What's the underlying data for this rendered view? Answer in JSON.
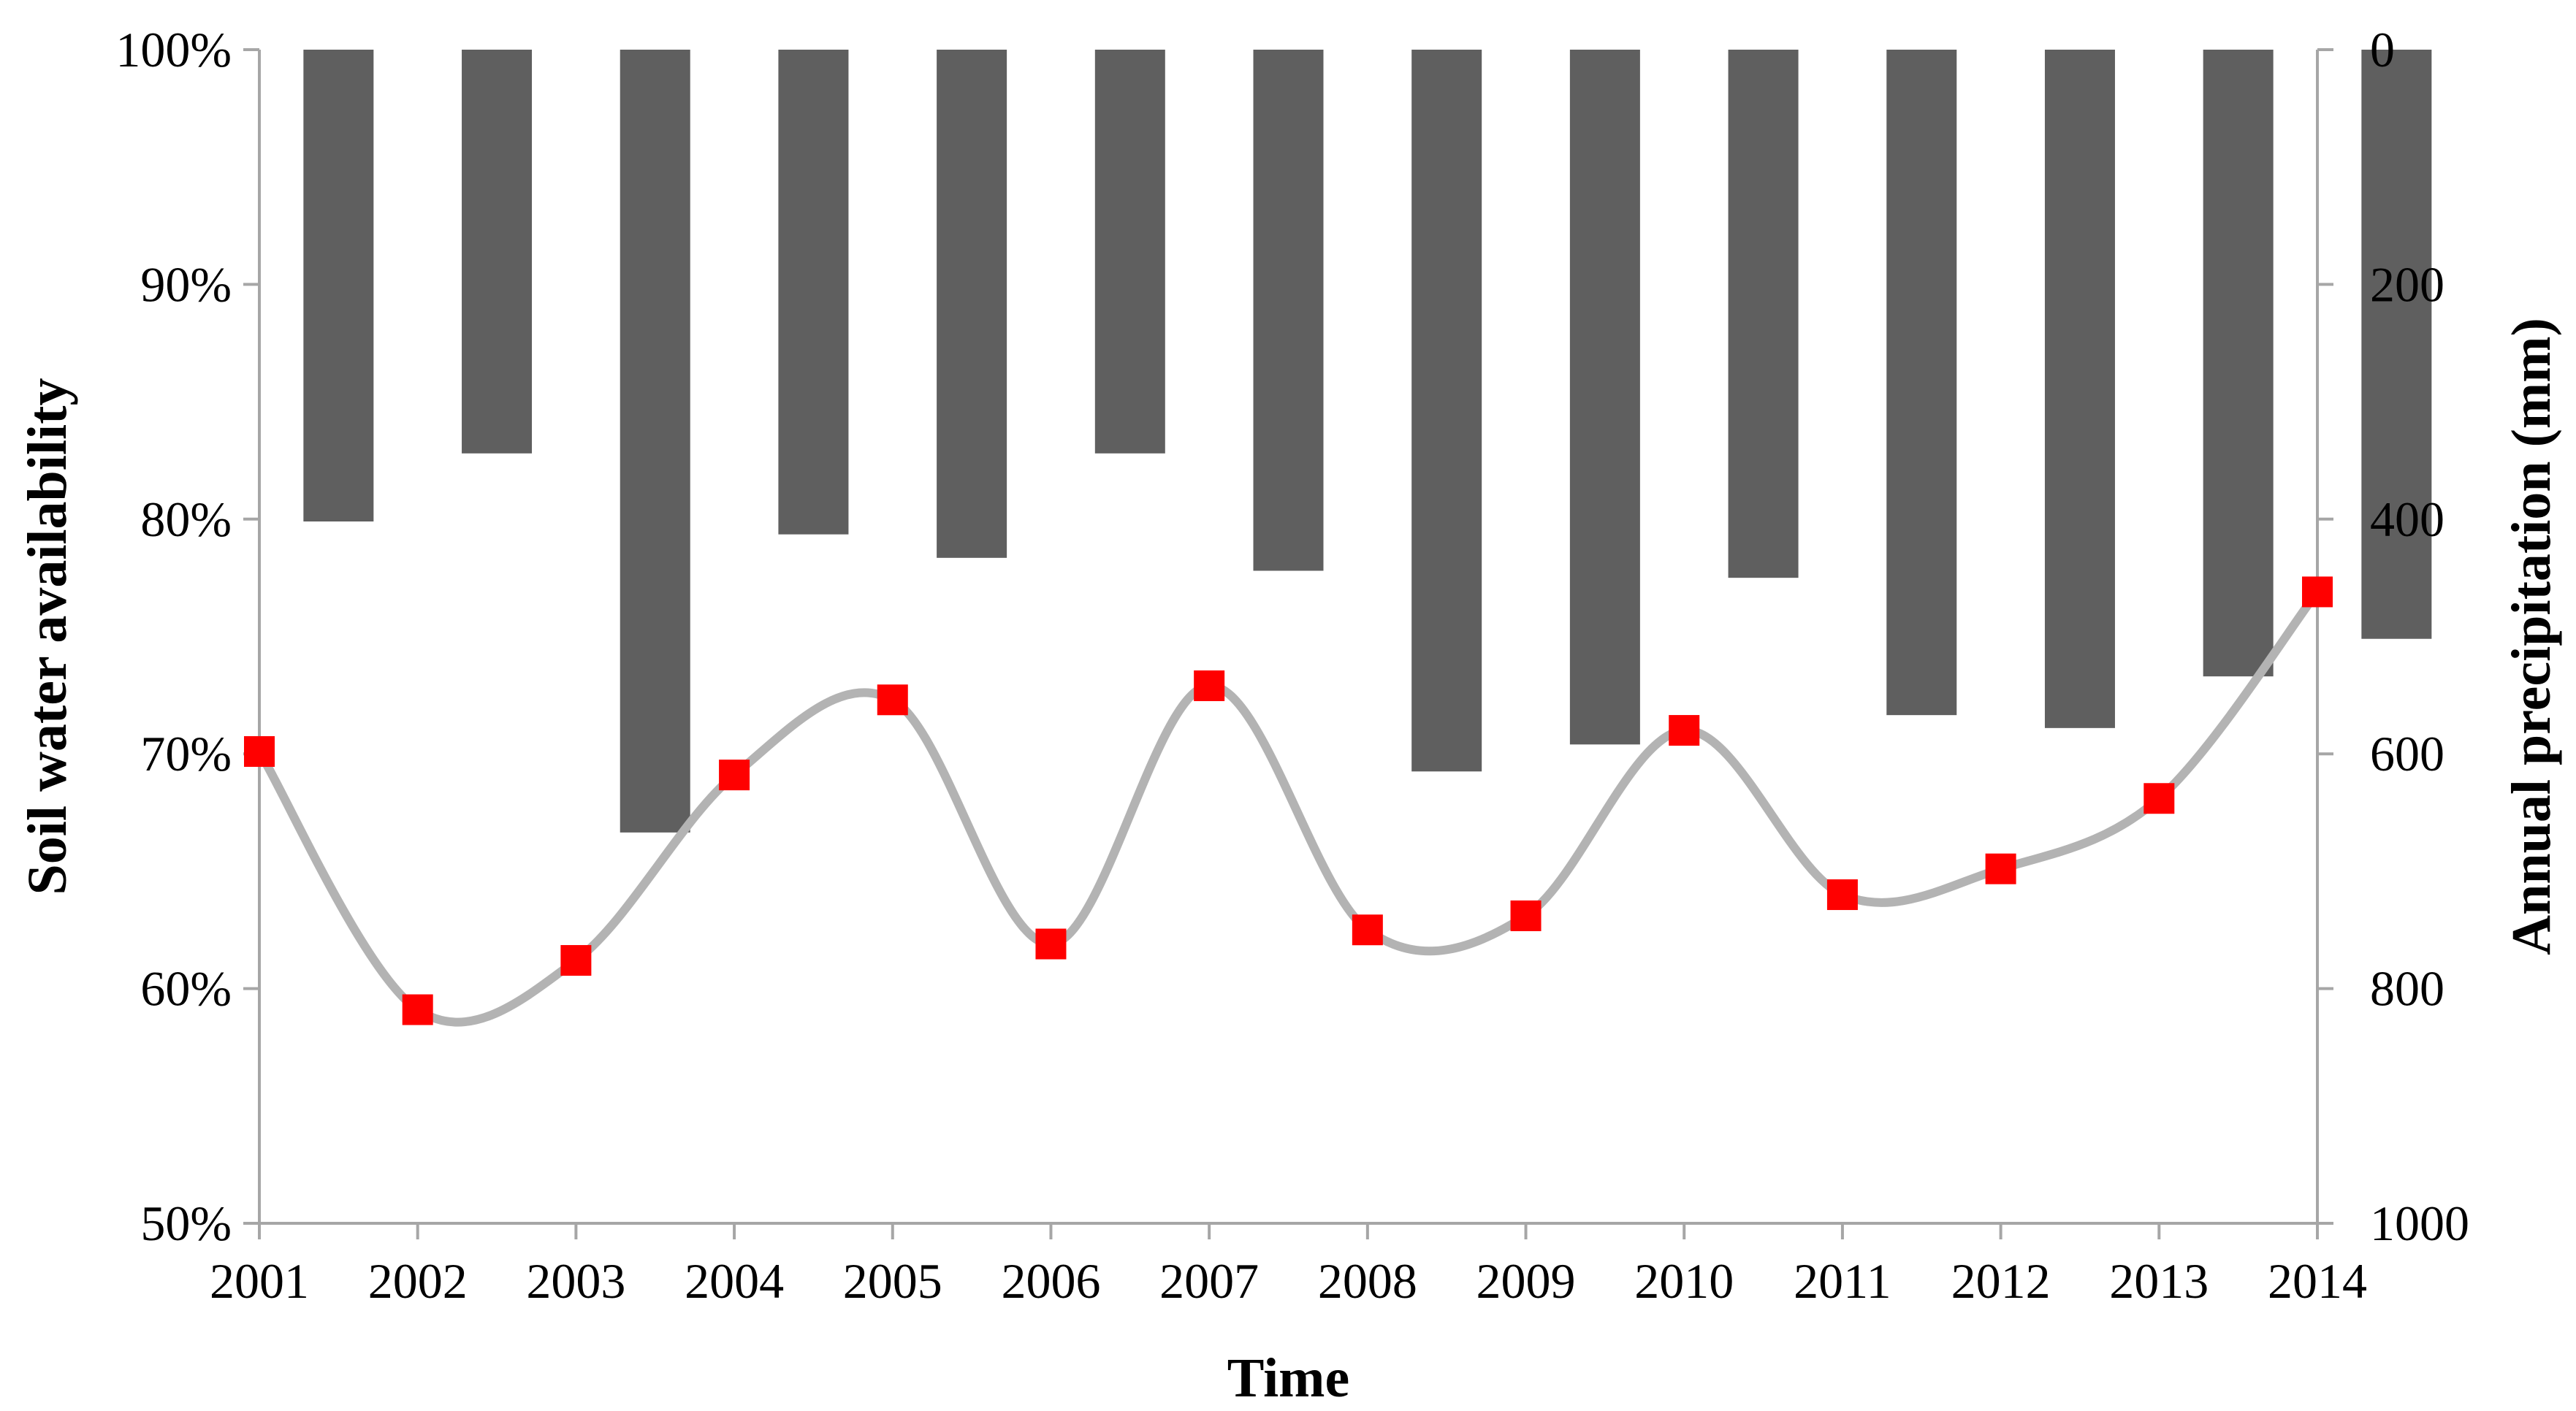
{
  "chart_data": {
    "type": "bar+line",
    "x": [
      "2001",
      "2002",
      "2003",
      "2004",
      "2005",
      "2006",
      "2007",
      "2008",
      "2009",
      "2010",
      "2011",
      "2012",
      "2013",
      "2014"
    ],
    "xlabel": "Time",
    "ylabel_left": "Soil water availability",
    "ylabel_right": "Annual precipitation (mm)",
    "left_axis": {
      "min": 50,
      "max": 100,
      "step": 10,
      "ticks": [
        "50%",
        "60%",
        "70%",
        "80%",
        "90%",
        "100%"
      ]
    },
    "right_axis": {
      "min": 0,
      "max": 1000,
      "step": 200,
      "inverted": true,
      "ticks": [
        "0",
        "200",
        "400",
        "600",
        "800",
        "1000"
      ]
    },
    "bars": {
      "axis": "right",
      "values": [
        402,
        344,
        667,
        413,
        433,
        344,
        444,
        615,
        592,
        450,
        567,
        578,
        534,
        502
      ],
      "color": "#5f5f5f"
    },
    "line": {
      "axis": "left",
      "values": [
        70.1,
        59.1,
        61.2,
        69.1,
        72.3,
        61.9,
        72.9,
        62.5,
        63.1,
        71.0,
        64.0,
        65.1,
        68.1,
        76.9
      ],
      "line_color": "#b3b3b3",
      "marker_color": "#ff0000",
      "smooth": true
    },
    "grid": false
  }
}
